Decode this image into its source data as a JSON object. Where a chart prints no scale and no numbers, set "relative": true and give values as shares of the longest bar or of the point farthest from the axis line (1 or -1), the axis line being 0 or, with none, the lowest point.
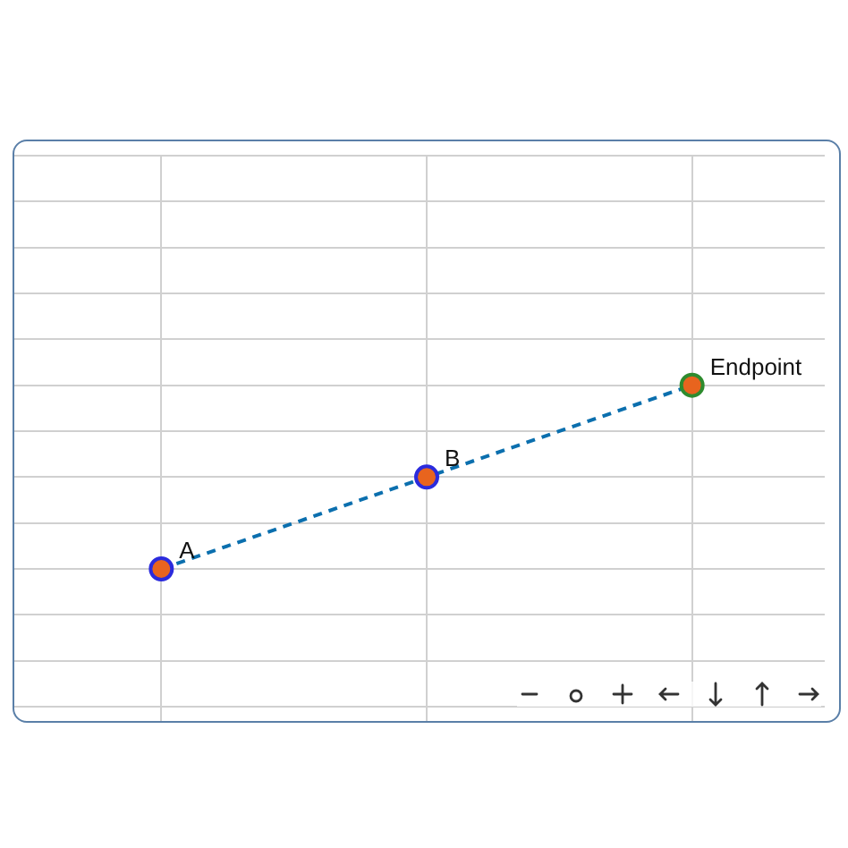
{
  "chart_data": {
    "type": "line",
    "relative": true,
    "categories": [
      null,
      null,
      null
    ],
    "series": [
      {
        "color": "#0b6fae",
        "values": [
          0,
          0.5,
          1
        ],
        "colors": [
          "#2b2bdd",
          "#2b2bdd",
          "#2e8b2e"
        ]
      }
    ],
    "marker": "circle",
    "line_style": "dashed",
    "grid": true,
    "legend": false,
    "annotations": [
      "A",
      "B",
      "Endpoint"
    ]
  }
}
